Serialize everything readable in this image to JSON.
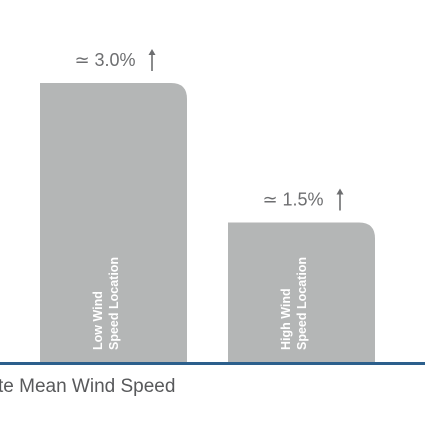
{
  "chart_data": {
    "type": "bar",
    "categories": [
      [
        "Low Wind",
        "Speed Location"
      ],
      [
        "High Wind",
        "Speed Location"
      ]
    ],
    "values": [
      3.0,
      1.5
    ],
    "value_labels": [
      "≃ 3.0%",
      "≃ 1.5%"
    ],
    "color": "#b4b6b6",
    "x_label": "te Mean Wind Speed"
  }
}
